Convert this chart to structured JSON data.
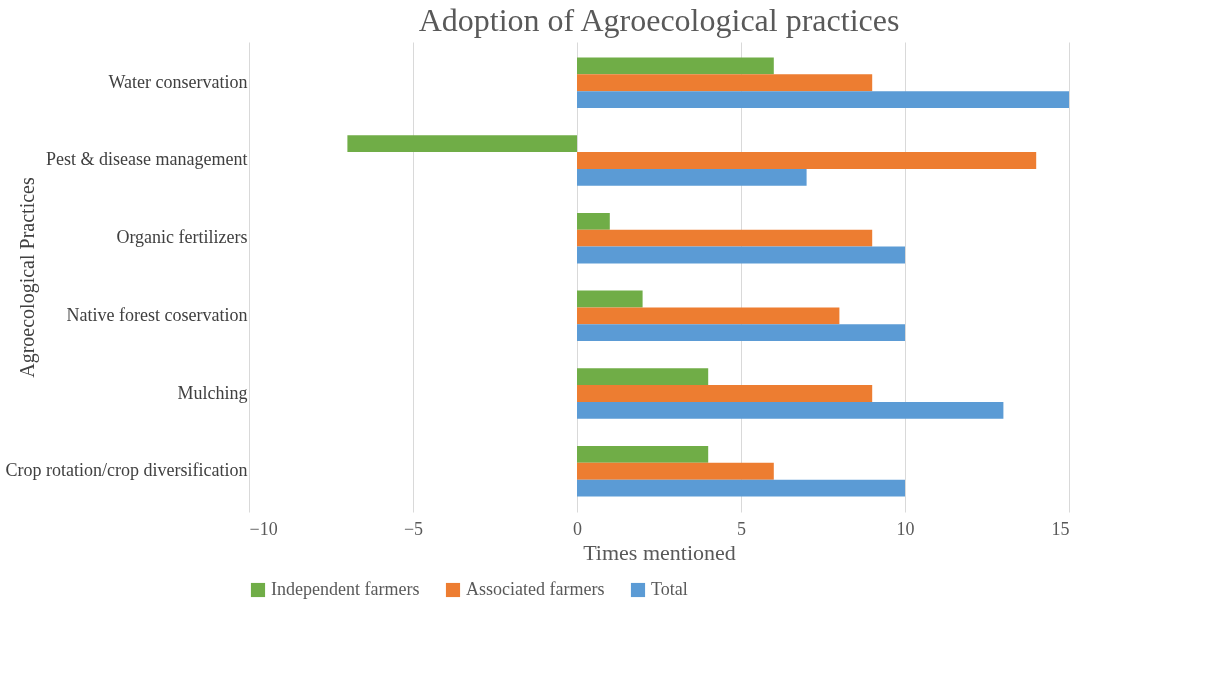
{
  "chart_data": {
    "type": "bar",
    "orientation": "horizontal",
    "title": "Adoption of Agroecological practices",
    "xlabel": "Times mentioned",
    "ylabel": "Agroecological Practices",
    "categories": [
      "Water conservation",
      "Pest & disease management",
      "Organic fertilizers",
      "Native forest coservation",
      "Mulching",
      "Crop rotation/crop diversification"
    ],
    "series": [
      {
        "name": "Independent farmers",
        "color": "#70ad47",
        "values": [
          6,
          -7,
          1,
          2,
          4,
          4
        ]
      },
      {
        "name": "Associated farmers",
        "color": "#ed7d31",
        "values": [
          9,
          14,
          9,
          8,
          9,
          6
        ]
      },
      {
        "name": "Total",
        "color": "#5b9bd5",
        "values": [
          15,
          7,
          10,
          10,
          13,
          10
        ]
      }
    ],
    "xlim": [
      -10,
      15
    ],
    "xticks": [
      -10,
      -5,
      0,
      5,
      10,
      15
    ],
    "grid": "x",
    "legend": "bottom"
  }
}
